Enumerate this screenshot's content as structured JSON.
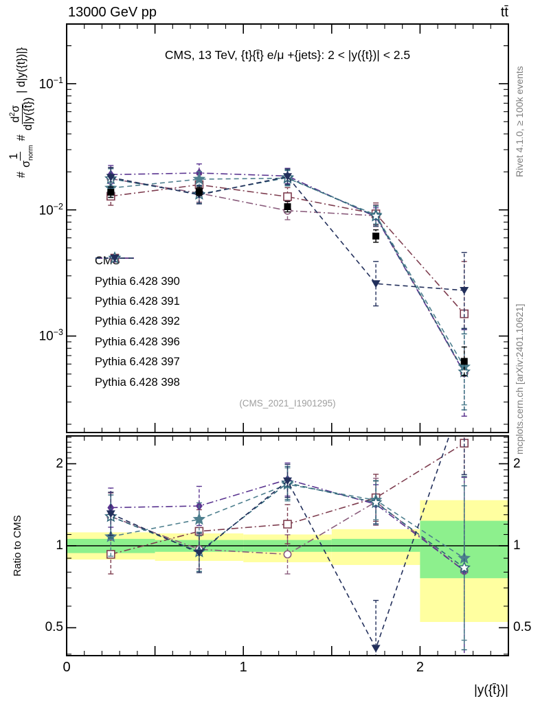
{
  "header": {
    "left": "13000 GeV pp",
    "right": "tt̄"
  },
  "panel_title": "CMS, 13 TeV, {t}{t̄} e/μ +{jets}: 2 < |y({t})| < 2.5",
  "watermark": "(CMS_2021_I1901295)",
  "side_notes": {
    "top": "Rivet 4.1.0, ≥ 100k events",
    "bottom": "mcplots.cern.ch [arXiv:2401.10621]"
  },
  "ylabel": {
    "hash1": "#",
    "f1_num": "1",
    "f1_den_base": "σ",
    "f1_den_sub": "norm",
    "hash2": "#",
    "f2_num_d": "d",
    "f2_num_sup": "2",
    "f2_num_sigma": "σ",
    "f2_den": "d|y({t̄})",
    "suffix": "| d|y({t})|}"
  },
  "chart_data": {
    "type": "line",
    "x": [
      0.25,
      0.75,
      1.25,
      1.75,
      2.25
    ],
    "bin_edges": [
      0,
      0.5,
      1.0,
      1.5,
      2.0,
      2.5
    ],
    "xlim": [
      0,
      2.5
    ],
    "xticks": [
      0,
      1,
      2
    ],
    "xlabel": "|y({t̄})|",
    "main": {
      "scale": "log",
      "ylim": [
        0.000172,
        0.297
      ],
      "ytick_exponents": [
        -1,
        -2,
        -3
      ],
      "series": [
        {
          "name": "CMS",
          "marker": "square-filled",
          "color": "#000000",
          "line": "none",
          "values": [
            0.0138,
            0.014,
            0.0106,
            0.0062,
            0.00063
          ],
          "err_factor": [
            1.1,
            1.08,
            1.1,
            1.12,
            1.3
          ]
        },
        {
          "name": "Pythia 6.428 390",
          "marker": "circle-open",
          "color": "#8a5c7c",
          "line": "dashdot",
          "values": [
            0.01766,
            0.01358,
            0.00986,
            0.00899,
            0.00051
          ],
          "err_factor": [
            1.22,
            1.18,
            1.18,
            1.22,
            2.2
          ],
          "ratio": [
            1.28,
            0.97,
            0.93,
            1.45,
            0.81
          ],
          "ratio_err_factor": [
            1.22,
            1.18,
            1.18,
            1.22,
            2.2
          ]
        },
        {
          "name": "Pythia 6.428 391",
          "marker": "square-open",
          "color": "#7e3d4f",
          "line": "dashdot",
          "values": [
            0.01283,
            0.01582,
            0.01272,
            0.0093,
            0.0015
          ],
          "err_factor": [
            1.18,
            1.2,
            1.18,
            1.22,
            2.6
          ],
          "ratio": [
            0.93,
            1.13,
            1.2,
            1.5,
            2.38
          ],
          "ratio_err_factor": [
            1.18,
            1.2,
            1.18,
            1.22,
            2.6
          ]
        },
        {
          "name": "Pythia 6.428 392",
          "marker": "diamond-filled",
          "color": "#5a3490",
          "line": "dashdot",
          "values": [
            0.01904,
            0.0196,
            0.01855,
            0.0088,
            0.00051
          ],
          "err_factor": [
            1.18,
            1.18,
            1.15,
            1.18,
            2.2
          ],
          "ratio": [
            1.38,
            1.4,
            1.75,
            1.42,
            0.81
          ],
          "ratio_err_factor": [
            1.18,
            1.18,
            1.15,
            1.18,
            2.2
          ]
        },
        {
          "name": "Pythia 6.428 396",
          "marker": "star-filled",
          "color": "#4e7f8e",
          "line": "dashed",
          "values": [
            0.0149,
            0.0175,
            0.01781,
            0.00911,
            0.00057
          ],
          "err_factor": [
            1.18,
            1.15,
            1.15,
            1.18,
            2.0
          ],
          "ratio": [
            1.08,
            1.25,
            1.68,
            1.47,
            0.9
          ],
          "ratio_err_factor": [
            1.18,
            1.15,
            1.15,
            1.18,
            2.0
          ]
        },
        {
          "name": "Pythia 6.428 397",
          "marker": "star-open",
          "color": "#2f6579",
          "line": "dashed",
          "values": [
            0.01766,
            0.0133,
            0.01802,
            0.00893,
            0.00052
          ],
          "err_factor": [
            1.2,
            1.18,
            1.15,
            1.2,
            2.0
          ],
          "ratio": [
            1.28,
            0.95,
            1.7,
            1.44,
            0.83
          ],
          "ratio_err_factor": [
            1.2,
            1.18,
            1.15,
            1.2,
            2.0
          ]
        },
        {
          "name": "Pythia 6.428 398",
          "marker": "triangle-down-filled",
          "color": "#222f5b",
          "line": "dashed",
          "values": [
            0.01808,
            0.01316,
            0.01834,
            0.0026,
            0.0023
          ],
          "err_factor": [
            1.2,
            1.18,
            1.15,
            1.5,
            2.0
          ],
          "ratio": [
            1.31,
            0.94,
            1.73,
            0.42,
            3.65
          ],
          "ratio_err_factor": [
            1.2,
            1.18,
            1.15,
            1.5,
            2.0
          ]
        }
      ]
    },
    "ratio": {
      "scale": "log",
      "ylabel": "Ratio to CMS",
      "ylim": [
        0.395,
        2.53
      ],
      "yticks": [
        0.5,
        1,
        2
      ],
      "reference_line": 1,
      "bands": {
        "yellow": {
          "color": "#ffffa0",
          "ranges": [
            [
              0.89,
              1.12
            ],
            [
              0.88,
              1.11
            ],
            [
              0.87,
              1.1
            ],
            [
              0.85,
              1.15
            ],
            [
              0.525,
              1.47
            ]
          ]
        },
        "green": {
          "color": "#8df08d",
          "ranges": [
            [
              0.94,
              1.06
            ],
            [
              0.95,
              1.05
            ],
            [
              0.95,
              1.05
            ],
            [
              0.95,
              1.06
            ],
            [
              0.76,
              1.235
            ]
          ]
        }
      }
    },
    "legend_position": "middle-left"
  }
}
